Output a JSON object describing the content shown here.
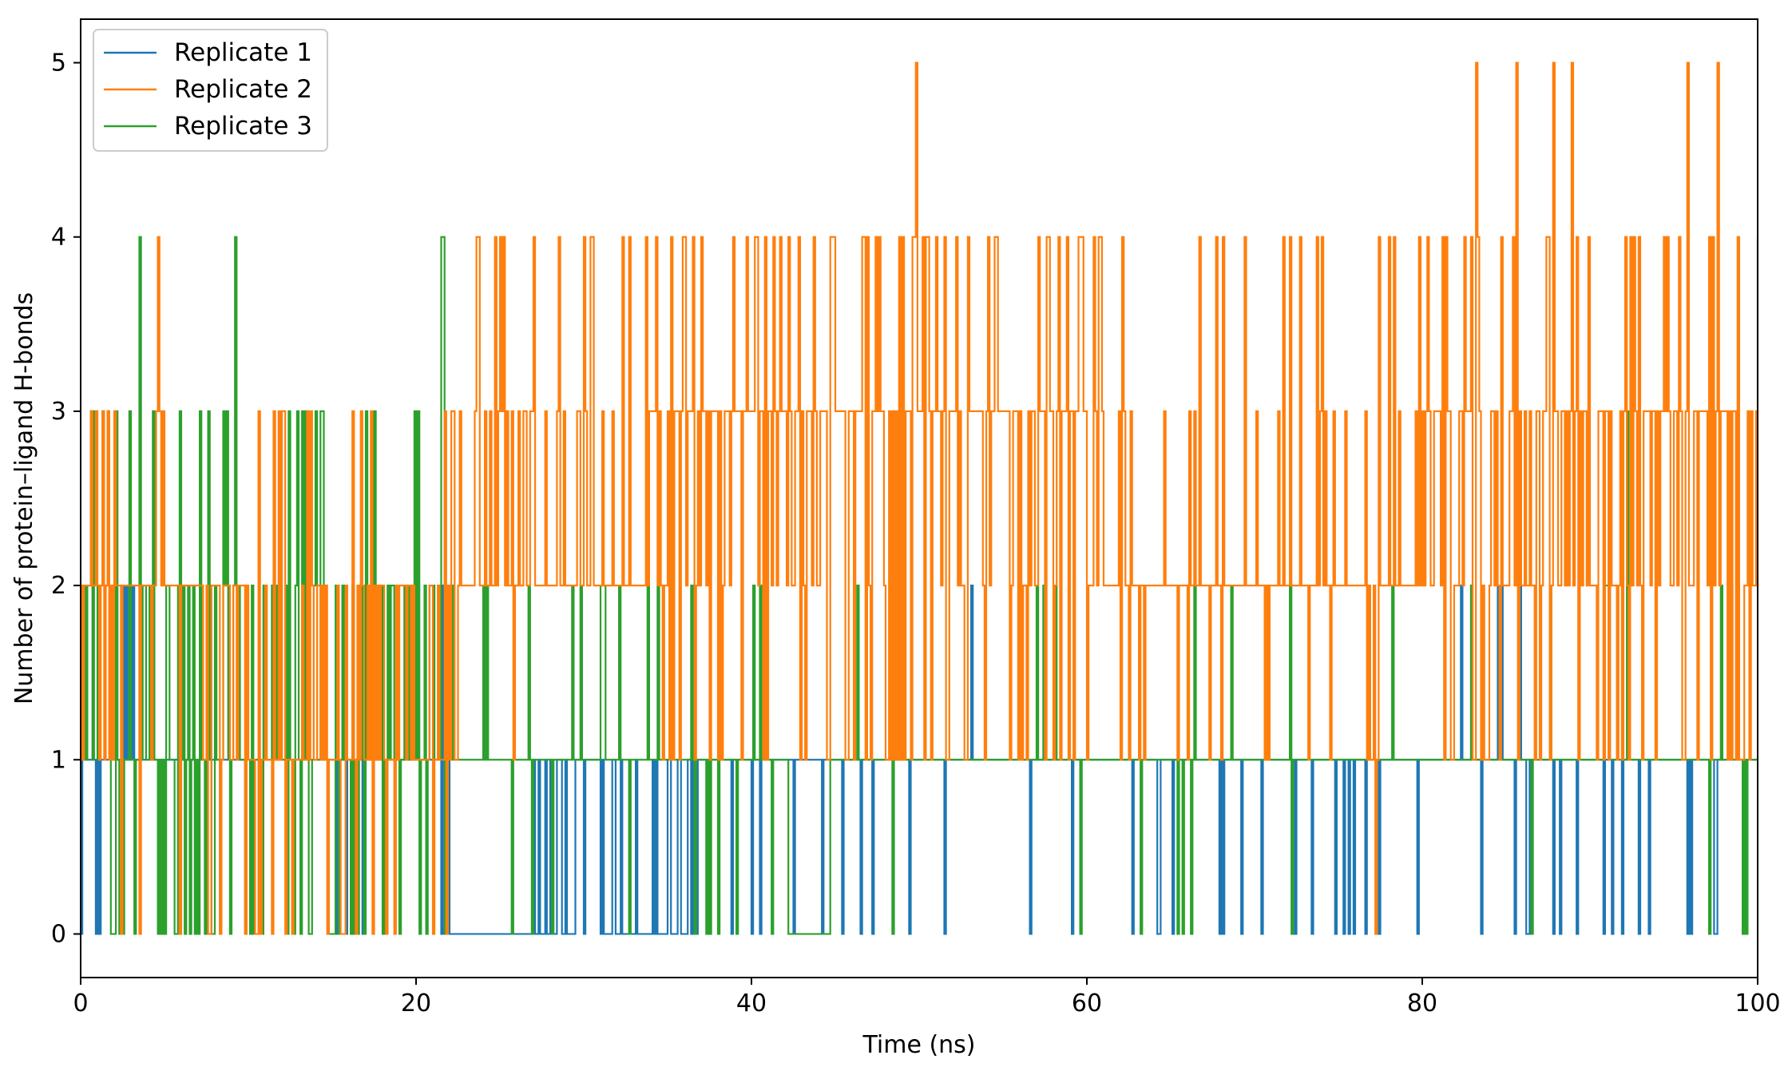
{
  "chart_data": {
    "type": "line",
    "title": "",
    "xlabel": "Time (ns)",
    "ylabel": "Number of protein–ligand H-bonds",
    "xlim": [
      0,
      100
    ],
    "ylim": [
      -0.25,
      5.25
    ],
    "xticks": [
      0,
      20,
      40,
      60,
      80,
      100
    ],
    "yticks": [
      0,
      1,
      2,
      3,
      4,
      5
    ],
    "grid": false,
    "legend_position": "top-left",
    "series": [
      {
        "name": "Replicate 1",
        "color": "#1f77b4",
        "step": 0.1,
        "segments": [
          {
            "x": [
              0,
              22
            ],
            "base": 1,
            "alts": [
              0,
              2,
              0,
              2
            ],
            "p": 0.1
          },
          {
            "x": [
              22,
              27
            ],
            "base": 0,
            "alts": [
              1
            ],
            "p": 0.05
          },
          {
            "x": [
              27,
              32
            ],
            "base": 1,
            "alts": [
              0
            ],
            "p": 0.45
          },
          {
            "x": [
              32,
              35
            ],
            "base": 0,
            "alts": [
              1
            ],
            "p": 0.05
          },
          {
            "x": [
              35,
              37
            ],
            "base": 1,
            "alts": [
              0
            ],
            "p": 0.4
          },
          {
            "x": [
              37,
              100
            ],
            "base": 1,
            "alts": [
              0,
              0,
              0,
              2
            ],
            "p": 0.07
          }
        ]
      },
      {
        "name": "Replicate 2",
        "color": "#ff7f0e",
        "step": 0.1,
        "segments": [
          {
            "x": [
              0,
              2
            ],
            "base": 2,
            "alts": [
              1,
              3
            ],
            "p": 0.35
          },
          {
            "x": [
              2,
              10
            ],
            "base": 2,
            "alts": [
              1,
              3,
              1,
              0
            ],
            "p": 0.25
          },
          {
            "x": [
              10,
              22.5
            ],
            "base": 1,
            "alts": [
              2,
              2,
              3,
              0
            ],
            "p": 0.45
          },
          {
            "x": [
              22.5,
              35
            ],
            "base": 2,
            "alts": [
              3,
              1,
              3,
              4
            ],
            "p": 0.3
          },
          {
            "x": [
              35,
              61
            ],
            "base": 2,
            "alts": [
              3,
              3,
              3,
              4,
              1
            ],
            "p": 0.85
          },
          {
            "x": [
              61,
              80
            ],
            "base": 2,
            "alts": [
              3,
              1,
              4
            ],
            "p": 0.2
          },
          {
            "x": [
              80,
              100
            ],
            "base": 2,
            "alts": [
              3,
              3,
              3,
              4,
              1
            ],
            "p": 0.75
          }
        ],
        "spikes": [
          {
            "x": 49.8,
            "y": 5
          },
          {
            "x": 83.2,
            "y": 5
          },
          {
            "x": 85.6,
            "y": 5
          },
          {
            "x": 87.8,
            "y": 5
          },
          {
            "x": 88.9,
            "y": 5
          },
          {
            "x": 95.8,
            "y": 5
          },
          {
            "x": 97.6,
            "y": 5
          },
          {
            "x": 77.2,
            "y": 0
          },
          {
            "x": 25.2,
            "y": 4
          },
          {
            "x": 27.0,
            "y": 4
          },
          {
            "x": 4.6,
            "y": 4
          }
        ]
      },
      {
        "name": "Replicate 3",
        "color": "#2ca02c",
        "step": 0.1,
        "segments": [
          {
            "x": [
              0,
              22
            ],
            "base": 1,
            "alts": [
              0,
              2,
              2,
              3,
              0
            ],
            "p": 0.55
          },
          {
            "x": [
              22,
              45
            ],
            "base": 1,
            "alts": [
              0,
              2
            ],
            "p": 0.15
          },
          {
            "x": [
              45,
              100
            ],
            "base": 1,
            "alts": [
              0,
              2
            ],
            "p": 0.06
          }
        ],
        "spikes": [
          {
            "x": 3.5,
            "y": 4
          },
          {
            "x": 9.2,
            "y": 4
          },
          {
            "x": 21.5,
            "y": 4
          },
          {
            "x": 21.6,
            "y": 4
          },
          {
            "x": 92.2,
            "y": 3
          }
        ],
        "flat": [
          {
            "x": [
              42.2,
              44.6
            ],
            "y": 0
          }
        ]
      }
    ]
  }
}
